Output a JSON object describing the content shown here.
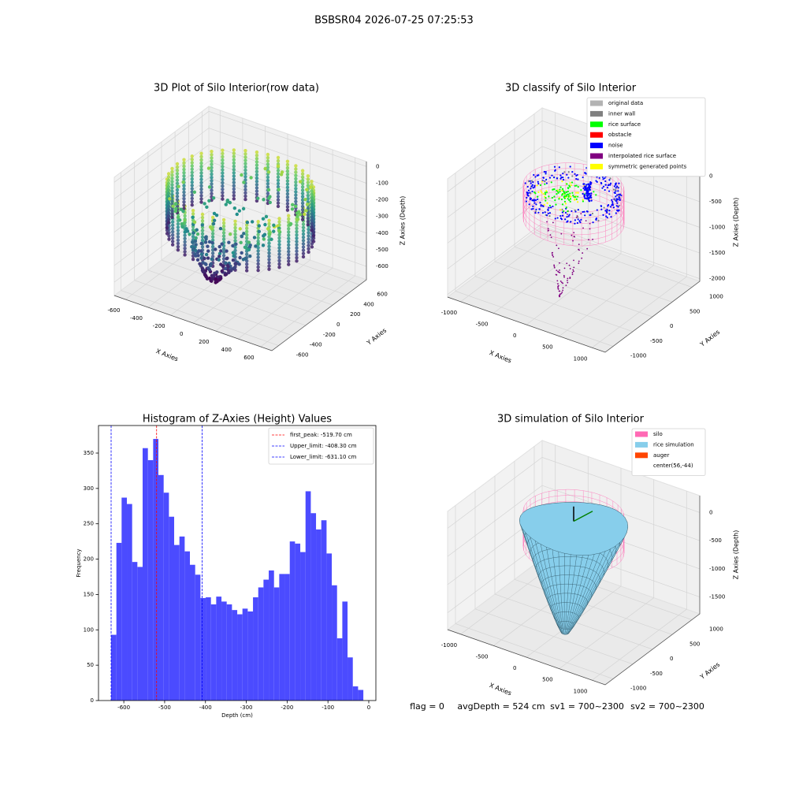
{
  "title": "BSBSR04 2026-07-25 07:25:53",
  "chart_data": [
    {
      "type": "scatter3d",
      "title": "3D Plot of Silo Interior(row data)",
      "xlabel": "X Axies",
      "ylabel": "Y Axies",
      "zlabel": "Z Axies (Depth)",
      "xlim": [
        -700,
        700
      ],
      "ylim": [
        -700,
        700
      ],
      "zlim": [
        -680,
        30
      ],
      "xticks": [
        -600,
        -400,
        -200,
        0,
        200,
        400,
        600
      ],
      "yticks": [
        -600,
        -400,
        -200,
        0,
        200,
        400,
        600
      ],
      "zticks": [
        0,
        -100,
        -200,
        -300,
        -400,
        -500,
        -600
      ]
    },
    {
      "type": "scatter3d",
      "title": "3D classify of Silo Interior",
      "xlabel": "X Axies",
      "ylabel": "Y Axies",
      "zlabel": "Z Axies (Depth)",
      "xlim": [
        -1200,
        1200
      ],
      "ylim": [
        -1200,
        1200
      ],
      "zlim": [
        -2050,
        250
      ],
      "xticks": [
        -1000,
        -500,
        0,
        500,
        1000
      ],
      "yticks": [
        -1000,
        -500,
        0,
        500,
        1000
      ],
      "zticks": [
        0,
        -500,
        -1000,
        -1500,
        -2000
      ],
      "legend": {
        "loc": "upper right",
        "entries": [
          {
            "name": "original data",
            "color": "#b3b3b3"
          },
          {
            "name": "inner wall",
            "color": "#808080"
          },
          {
            "name": "rice surface",
            "color": "#00ff00"
          },
          {
            "name": "obstacle",
            "color": "#ff0000"
          },
          {
            "name": "noise",
            "color": "#0000ff"
          },
          {
            "name": "interpolated rice surface",
            "color": "#800080"
          },
          {
            "name": "symmetric generated points",
            "color": "#ffff00"
          }
        ]
      }
    },
    {
      "type": "histogram",
      "title": "Histogram of Z-Axies (Height) Values",
      "xlabel": "Depth (cm)",
      "ylabel": "Frequency",
      "color": "#4b4bff",
      "bins": [
        -631.1,
        -618.2,
        -605.4,
        -592.5,
        -579.6,
        -566.8,
        -553.9,
        -541.0,
        -528.1,
        -515.3,
        -502.4,
        -489.5,
        -476.7,
        -463.8,
        -450.9,
        -438.1,
        -425.2,
        -412.3,
        -399.4,
        -386.6,
        -373.7,
        -360.8,
        -348.0,
        -335.1,
        -322.2,
        -309.4,
        -296.5,
        -283.6,
        -270.7,
        -257.9,
        -245.0,
        -232.1,
        -219.3,
        -206.4,
        -193.5,
        -180.7,
        -167.8,
        -154.9,
        -142.0,
        -129.2,
        -116.3,
        -103.4,
        -90.6,
        -77.7,
        -64.8,
        -52.0,
        -39.1,
        -26.2,
        -13.3
      ],
      "values": [
        93,
        223,
        287,
        278,
        196,
        189,
        357,
        340,
        370,
        319,
        294,
        260,
        220,
        232,
        211,
        192,
        178,
        145,
        146,
        136,
        147,
        140,
        136,
        128,
        122,
        130,
        126,
        146,
        160,
        171,
        184,
        160,
        179,
        179,
        225,
        222,
        210,
        296,
        265,
        242,
        255,
        208,
        163,
        88,
        140,
        61,
        20,
        15
      ],
      "xlim": [
        -662,
        17.4
      ],
      "ylim": [
        0,
        389
      ],
      "xticks": [
        -600,
        -500,
        -400,
        -300,
        -200,
        -100,
        0
      ],
      "yticks": [
        0,
        50,
        100,
        150,
        200,
        250,
        300,
        350
      ],
      "vlines": [
        {
          "name": "first_peak: -519.70 cm",
          "value": -519.7,
          "color": "#ff0000"
        },
        {
          "name": "Upper_limit: -408.30 cm",
          "value": -408.3,
          "color": "#0000ff"
        },
        {
          "name": "Lower_limit: -631.10 cm",
          "value": -631.1,
          "color": "#0000ff"
        }
      ],
      "legend": {
        "loc": "upper right"
      }
    },
    {
      "type": "surface3d",
      "title": "3D simulation of Silo Interior",
      "xlabel": "X Axies",
      "ylabel": "Y Axies",
      "zlabel": "Z Axies (Depth)",
      "xlim": [
        -1200,
        1200
      ],
      "ylim": [
        -1200,
        1200
      ],
      "zlim": [
        -1800,
        300
      ],
      "xticks": [
        -1000,
        -500,
        0,
        500,
        1000
      ],
      "yticks": [
        -1000,
        -500,
        0,
        500,
        1000
      ],
      "zticks": [
        0,
        -500,
        -1000,
        -1500
      ],
      "legend": {
        "loc": "upper right",
        "entries": [
          {
            "name": "silo",
            "color": "#ff69b4"
          },
          {
            "name": "rice simulation",
            "color": "#87ceeb"
          },
          {
            "name": "auger",
            "color": "#ff4500"
          },
          {
            "name": "center(56,-44)",
            "color": "#ffffff"
          }
        ]
      }
    }
  ],
  "footer": [
    "flag = 0",
    "avgDepth = 524 cm",
    "sv1 = 700~2300",
    "sv2 = 700~2300"
  ]
}
